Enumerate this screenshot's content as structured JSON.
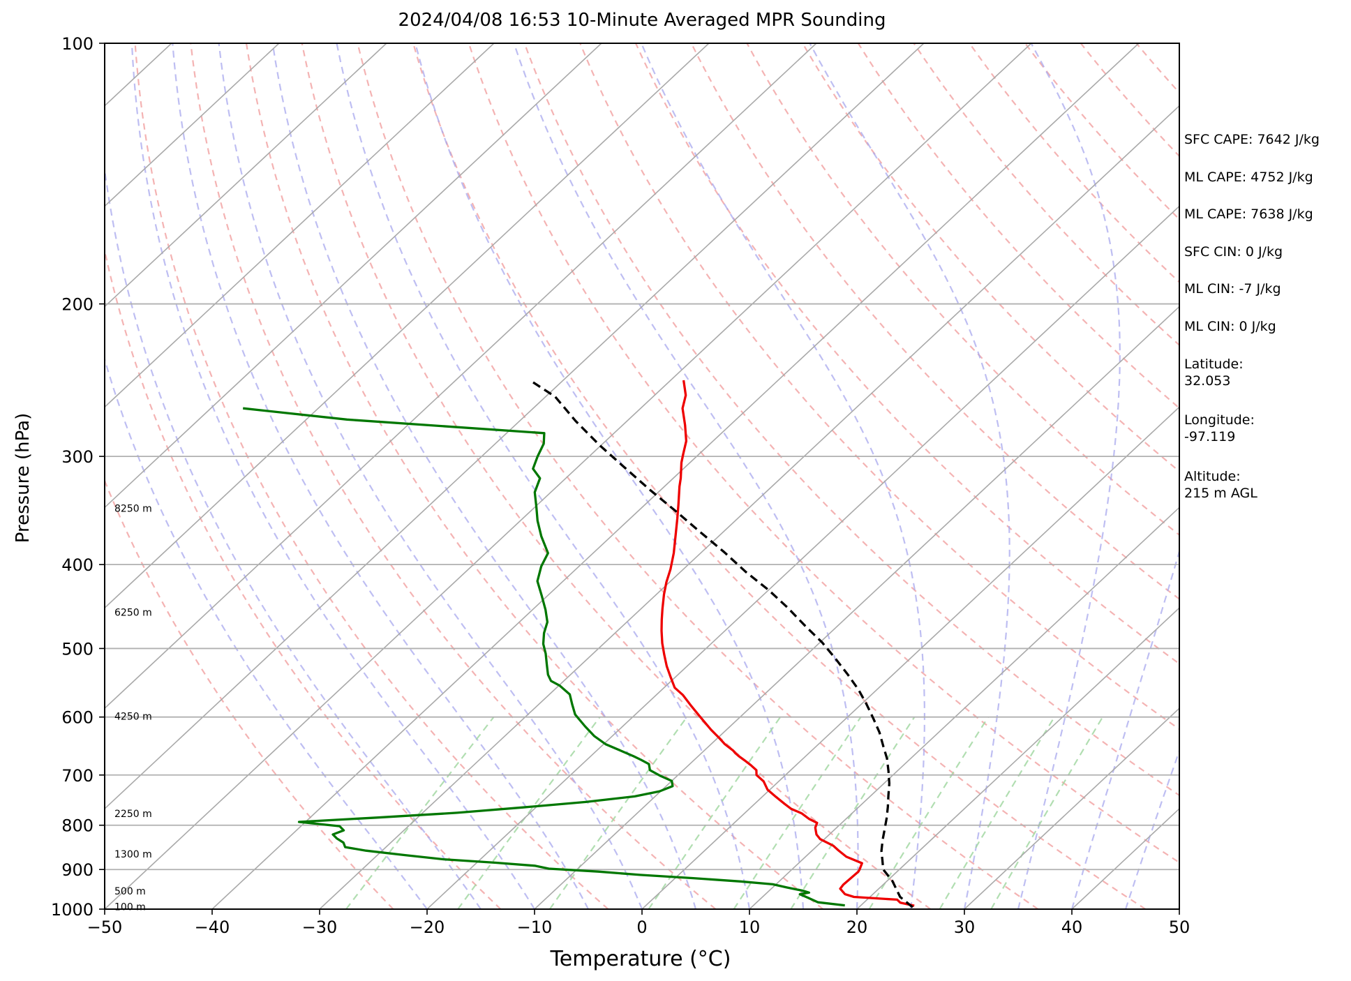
{
  "title": "2024/04/08 16:53 10-Minute Averaged MPR Sounding",
  "info": [
    {
      "text": "SFC CAPE: 7642 J/kg"
    },
    {
      "text": "ML CAPE: 4752 J/kg"
    },
    {
      "text": "ML CAPE: 7638 J/kg"
    },
    {
      "text": "SFC CIN: 0 J/kg"
    },
    {
      "text": "ML CIN: -7 J/kg"
    },
    {
      "text": "ML CIN: 0 J/kg"
    },
    {
      "text": "Latitude:\n32.053"
    },
    {
      "text": "Longitude:\n-97.119"
    },
    {
      "text": "Altitude:\n215 m AGL"
    }
  ],
  "chart_data": {
    "type": "line",
    "title": "2024/04/08 16:53 10-Minute Averaged MPR Sounding",
    "xlabel": "Temperature (°C)",
    "ylabel": "Pressure (hPa)",
    "xlim": [
      -50,
      50
    ],
    "ylim": [
      1000,
      100
    ],
    "y_scale": "log",
    "skew_t": true,
    "grid": true,
    "x_ticks": [
      -50,
      -40,
      -30,
      -20,
      -10,
      0,
      10,
      20,
      30,
      40,
      50
    ],
    "y_ticks": [
      100,
      200,
      300,
      400,
      500,
      600,
      700,
      800,
      900,
      1000
    ],
    "height_labels": [
      {
        "text": "8250 m",
        "p": 345
      },
      {
        "text": "6250 m",
        "p": 455
      },
      {
        "text": "4250 m",
        "p": 600
      },
      {
        "text": "2250 m",
        "p": 777
      },
      {
        "text": "1300 m",
        "p": 865
      },
      {
        "text": "500 m",
        "p": 955
      },
      {
        "text": "100 m",
        "p": 995
      }
    ],
    "series": [
      {
        "key": "temperature",
        "color": "#ee0000",
        "points": [
          [
            25.0,
            991
          ],
          [
            23.4,
            983
          ],
          [
            22.8,
            975
          ],
          [
            18.5,
            968
          ],
          [
            17.4,
            961
          ],
          [
            16.4,
            947
          ],
          [
            16.3,
            937
          ],
          [
            16.4,
            905
          ],
          [
            16.3,
            900
          ],
          [
            15.9,
            885
          ],
          [
            13.8,
            870
          ],
          [
            12.4,
            855
          ],
          [
            11.5,
            845
          ],
          [
            9.6,
            830
          ],
          [
            8.8,
            820
          ],
          [
            8.0,
            805
          ],
          [
            7.7,
            795
          ],
          [
            6.6,
            787
          ],
          [
            5.3,
            775
          ],
          [
            3.9,
            766
          ],
          [
            2.8,
            756
          ],
          [
            1.3,
            742
          ],
          [
            -0.2,
            728
          ],
          [
            -1.4,
            712
          ],
          [
            -2.7,
            700
          ],
          [
            -3.2,
            691
          ],
          [
            -4.2,
            682
          ],
          [
            -5.3,
            673
          ],
          [
            -6.2,
            666
          ],
          [
            -6.9,
            660
          ],
          [
            -7.3,
            656
          ],
          [
            -8.7,
            645
          ],
          [
            -9.9,
            634
          ],
          [
            -11.4,
            621
          ],
          [
            -13.7,
            600
          ],
          [
            -15.6,
            583
          ],
          [
            -17.5,
            566
          ],
          [
            -19.0,
            555
          ],
          [
            -20.4,
            540
          ],
          [
            -21.9,
            524
          ],
          [
            -23.3,
            508
          ],
          [
            -24.6,
            493
          ],
          [
            -25.9,
            477
          ],
          [
            -27.0,
            463
          ],
          [
            -28.0,
            450
          ],
          [
            -29.3,
            433
          ],
          [
            -30.3,
            419
          ],
          [
            -31.2,
            405
          ],
          [
            -32.5,
            388
          ],
          [
            -34.2,
            369
          ],
          [
            -35.6,
            354
          ],
          [
            -36.9,
            341
          ],
          [
            -38.6,
            325
          ],
          [
            -39.3,
            318
          ],
          [
            -40.8,
            305
          ],
          [
            -41.5,
            298
          ],
          [
            -42.5,
            288
          ],
          [
            -44.2,
            276
          ],
          [
            -46.1,
            264
          ],
          [
            -47.1,
            255
          ],
          [
            -48.8,
            245
          ]
        ]
      },
      {
        "key": "dewpoint",
        "color": "#007700",
        "points": [
          [
            18.5,
            990
          ],
          [
            15.7,
            982
          ],
          [
            14.3,
            970
          ],
          [
            13.2,
            961
          ],
          [
            13.9,
            957
          ],
          [
            13.1,
            952
          ],
          [
            11.3,
            944
          ],
          [
            9.7,
            936
          ],
          [
            6.4,
            929
          ],
          [
            1.7,
            921
          ],
          [
            -3.6,
            913
          ],
          [
            -7.8,
            905
          ],
          [
            -12.7,
            898
          ],
          [
            -14.3,
            891
          ],
          [
            -18.2,
            884
          ],
          [
            -23.4,
            876
          ],
          [
            -27.5,
            866
          ],
          [
            -31.5,
            856
          ],
          [
            -33.8,
            848
          ],
          [
            -34.4,
            838
          ],
          [
            -35.4,
            829
          ],
          [
            -36.2,
            820
          ],
          [
            -35.6,
            811
          ],
          [
            -36.4,
            802
          ],
          [
            -40.6,
            793
          ],
          [
            -33.8,
            784
          ],
          [
            -26.8,
            774
          ],
          [
            -21.2,
            763
          ],
          [
            -15.9,
            752
          ],
          [
            -11.9,
            741
          ],
          [
            -10.1,
            731
          ],
          [
            -9.4,
            721
          ],
          [
            -10.0,
            711
          ],
          [
            -11.5,
            702
          ],
          [
            -13.1,
            691
          ],
          [
            -13.8,
            680
          ],
          [
            -15.0,
            672
          ],
          [
            -16.0,
            666
          ],
          [
            -17.6,
            657
          ],
          [
            -19.8,
            645
          ],
          [
            -21.7,
            631
          ],
          [
            -23.5,
            615
          ],
          [
            -25.6,
            596
          ],
          [
            -26.9,
            580
          ],
          [
            -28.1,
            565
          ],
          [
            -29.9,
            552
          ],
          [
            -31.2,
            545
          ],
          [
            -32.1,
            536
          ],
          [
            -33.2,
            522
          ],
          [
            -34.4,
            507
          ],
          [
            -35.6,
            494
          ],
          [
            -36.6,
            480
          ],
          [
            -37.4,
            466
          ],
          [
            -38.8,
            451
          ],
          [
            -40.6,
            434
          ],
          [
            -42.4,
            418
          ],
          [
            -43.5,
            402
          ],
          [
            -44.2,
            388
          ],
          [
            -46.5,
            371
          ],
          [
            -48.4,
            356
          ],
          [
            -49.9,
            343
          ],
          [
            -51.5,
            330
          ],
          [
            -52.4,
            318
          ],
          [
            -54.0,
            310
          ],
          [
            -54.8,
            300
          ],
          [
            -55.5,
            290
          ],
          [
            -56.5,
            282
          ],
          [
            -76.2,
            272
          ],
          [
            -87.0,
            264
          ]
        ]
      },
      {
        "key": "parcel",
        "color": "#000000",
        "points": [
          [
            25.0,
            995
          ],
          [
            22.8,
            968
          ],
          [
            20.5,
            928
          ],
          [
            18.5,
            900
          ],
          [
            17.5,
            878
          ],
          [
            16.5,
            857
          ],
          [
            15.5,
            832
          ],
          [
            14.6,
            808
          ],
          [
            13.7,
            785
          ],
          [
            12.7,
            762
          ],
          [
            11.6,
            739
          ],
          [
            10.5,
            716
          ],
          [
            9.2,
            693
          ],
          [
            7.8,
            670
          ],
          [
            6.2,
            648
          ],
          [
            4.5,
            625
          ],
          [
            2.6,
            603
          ],
          [
            0.5,
            580
          ],
          [
            -1.7,
            558
          ],
          [
            -4.2,
            536
          ],
          [
            -6.9,
            514
          ],
          [
            -9.8,
            492
          ],
          [
            -13.0,
            471
          ],
          [
            -16.4,
            449
          ],
          [
            -20.0,
            428
          ],
          [
            -23.9,
            408
          ],
          [
            -27.9,
            387
          ],
          [
            -32.1,
            367
          ],
          [
            -36.5,
            347
          ],
          [
            -41.0,
            328
          ],
          [
            -45.6,
            309
          ],
          [
            -50.2,
            291
          ],
          [
            -54.8,
            273
          ],
          [
            -59.1,
            256
          ],
          [
            -63.1,
            245
          ]
        ]
      }
    ]
  }
}
